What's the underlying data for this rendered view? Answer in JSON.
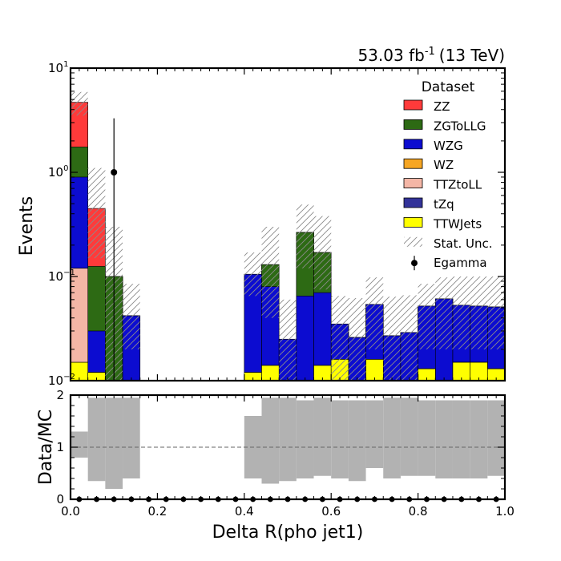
{
  "chart_data": {
    "type": "bar",
    "lumi_label": {
      "value": "53.03 fb",
      "superscript": "-1",
      "suffix": "(13 TeV)"
    },
    "xlabel": "Delta R(pho jet1)",
    "ylabel": "Events",
    "ratio_ylabel": "Data/MC",
    "xlim": [
      0,
      1
    ],
    "ylim": [
      0.01,
      10
    ],
    "yscale": "log",
    "ratio_ylim": [
      0,
      2
    ],
    "x_ticks": [
      "0.0",
      "0.2",
      "0.4",
      "0.6",
      "0.8",
      "1.0"
    ],
    "x_tick_values": [
      0,
      0.2,
      0.4,
      0.6,
      0.8,
      1.0
    ],
    "y_ticks": [
      {
        "base": "10",
        "exp": "1",
        "value": 10
      },
      {
        "base": "10",
        "exp": "0",
        "value": 1
      },
      {
        "base": "10",
        "exp": "−1",
        "value": 0.1
      },
      {
        "base": "10",
        "exp": "−2",
        "value": 0.01
      }
    ],
    "ratio_ticks": [
      "0",
      "1",
      "2"
    ],
    "ratio_tick_values": [
      0,
      1,
      2
    ],
    "legend": {
      "title": "Dataset",
      "placement": "top-right"
    },
    "bin_edges": [
      0,
      0.04,
      0.08,
      0.12,
      0.16,
      0.2,
      0.24,
      0.28,
      0.32,
      0.36,
      0.4,
      0.44,
      0.48,
      0.52,
      0.56,
      0.6,
      0.64,
      0.68,
      0.72,
      0.76,
      0.8,
      0.84,
      0.88,
      0.92,
      0.96,
      1.0
    ],
    "stack_tops": [
      {
        "name": "TTWJets",
        "color": "#ffff00",
        "values": [
          0.015,
          0.012,
          0,
          0,
          0,
          0,
          0,
          0,
          0,
          0,
          0.012,
          0.014,
          0,
          0,
          0.014,
          0.016,
          0,
          0.016,
          0,
          0,
          0.013,
          0,
          0.015,
          0.015,
          0.013
        ]
      },
      {
        "name": "tZq",
        "color": "#333399",
        "values": [
          0.015,
          0.012,
          0,
          0,
          0,
          0,
          0,
          0,
          0,
          0,
          0.012,
          0.014,
          0,
          0,
          0.014,
          0.016,
          0,
          0.016,
          0,
          0,
          0.013,
          0,
          0.015,
          0.015,
          0.013
        ]
      },
      {
        "name": "TTZtoLL",
        "color": "#f4b6a6",
        "values": [
          0.12,
          0.012,
          0,
          0,
          0,
          0,
          0,
          0,
          0,
          0,
          0.012,
          0.014,
          0,
          0,
          0.014,
          0.016,
          0,
          0.016,
          0,
          0,
          0.013,
          0,
          0.015,
          0.015,
          0.013
        ]
      },
      {
        "name": "WZ",
        "color": "#f6a623",
        "values": [
          0.12,
          0.012,
          0,
          0,
          0,
          0,
          0,
          0,
          0,
          0,
          0.012,
          0.014,
          0,
          0,
          0.014,
          0.016,
          0,
          0.016,
          0,
          0,
          0.013,
          0,
          0.015,
          0.015,
          0.013
        ]
      },
      {
        "name": "WZG",
        "color": "#0c0cd0",
        "values": [
          0.9,
          0.03,
          0.01,
          0.042,
          0,
          0,
          0,
          0,
          0,
          0,
          0.105,
          0.08,
          0.025,
          0.065,
          0.07,
          0.035,
          0.026,
          0.054,
          0.027,
          0.029,
          0.052,
          0.061,
          0.053,
          0.052,
          0.051
        ]
      },
      {
        "name": "ZGToLLG",
        "color": "#2d6a14",
        "values": [
          1.75,
          0.125,
          0.1,
          0.042,
          0,
          0,
          0,
          0,
          0,
          0,
          0.105,
          0.13,
          0.025,
          0.265,
          0.17,
          0.035,
          0.026,
          0.054,
          0.027,
          0.029,
          0.052,
          0.061,
          0.053,
          0.052,
          0.051
        ]
      },
      {
        "name": "ZZ",
        "color": "#ff3a3a",
        "values": [
          4.7,
          0.45,
          0.1,
          0.042,
          0,
          0,
          0,
          0,
          0,
          0,
          0.105,
          0.13,
          0.025,
          0.265,
          0.17,
          0.035,
          0.026,
          0.054,
          0.027,
          0.029,
          0.052,
          0.061,
          0.053,
          0.052,
          0.051
        ]
      }
    ],
    "stat_unc": {
      "up": [
        5.9,
        1.1,
        0.3,
        0.085,
        0,
        0,
        0,
        0,
        0,
        0,
        0.17,
        0.3,
        0.06,
        0.49,
        0.38,
        0.065,
        0.062,
        0.098,
        0.064,
        0.066,
        0.085,
        0.098,
        0.1,
        0.1,
        0.1
      ],
      "down": [
        3.5,
        0.15,
        0.01,
        0.02,
        0,
        0,
        0,
        0,
        0,
        0,
        0.065,
        0.04,
        0.01,
        0.12,
        0.075,
        0.01,
        0.01,
        0.02,
        0.01,
        0.01,
        0.02,
        0.02,
        0.02,
        0.02,
        0.02
      ]
    },
    "data_points": [
      {
        "name": "Egamma",
        "x": 0.1,
        "y": 1.0,
        "y_low": 0.01,
        "y_high": 3.3
      }
    ],
    "ratio_band": {
      "up": [
        1.3,
        1.95,
        1.95,
        1.95,
        0,
        0,
        0,
        0,
        0,
        0,
        1.6,
        1.95,
        1.95,
        1.9,
        1.95,
        1.9,
        1.9,
        1.9,
        1.95,
        1.95,
        1.9,
        1.9,
        1.9,
        1.9,
        1.9
      ],
      "down": [
        0.8,
        0.35,
        0.2,
        0.4,
        0,
        0,
        0,
        0,
        0,
        0,
        0.4,
        0.3,
        0.35,
        0.4,
        0.45,
        0.4,
        0.35,
        0.6,
        0.4,
        0.45,
        0.45,
        0.4,
        0.4,
        0.4,
        0.45
      ]
    },
    "ratio_points_x": [
      0.02,
      0.06,
      0.1,
      0.14,
      0.18,
      0.22,
      0.26,
      0.3,
      0.34,
      0.38,
      0.42,
      0.46,
      0.5,
      0.54,
      0.58,
      0.62,
      0.66,
      0.7,
      0.74,
      0.78,
      0.82,
      0.86,
      0.9,
      0.94,
      0.98
    ],
    "ratio_points_y": [
      0,
      0,
      0,
      0,
      0,
      0,
      0,
      0,
      0,
      0,
      0,
      0,
      0,
      0,
      0,
      0,
      0,
      0,
      0,
      0,
      0,
      0,
      0,
      0,
      0
    ],
    "legend_entries": [
      {
        "label": "ZZ",
        "kind": "box",
        "color": "#ff3a3a"
      },
      {
        "label": "ZGToLLG",
        "kind": "box",
        "color": "#2d6a14"
      },
      {
        "label": "WZG",
        "kind": "box",
        "color": "#0c0cd0"
      },
      {
        "label": "WZ",
        "kind": "box",
        "color": "#f6a623"
      },
      {
        "label": "TTZtoLL",
        "kind": "box",
        "color": "#f4b6a6"
      },
      {
        "label": "tZq",
        "kind": "box",
        "color": "#333399"
      },
      {
        "label": "TTWJets",
        "kind": "box",
        "color": "#ffff00"
      },
      {
        "label": "Stat. Unc.",
        "kind": "hatch",
        "color": "#999999"
      },
      {
        "label": "Egamma",
        "kind": "marker",
        "color": "#000000"
      }
    ]
  }
}
